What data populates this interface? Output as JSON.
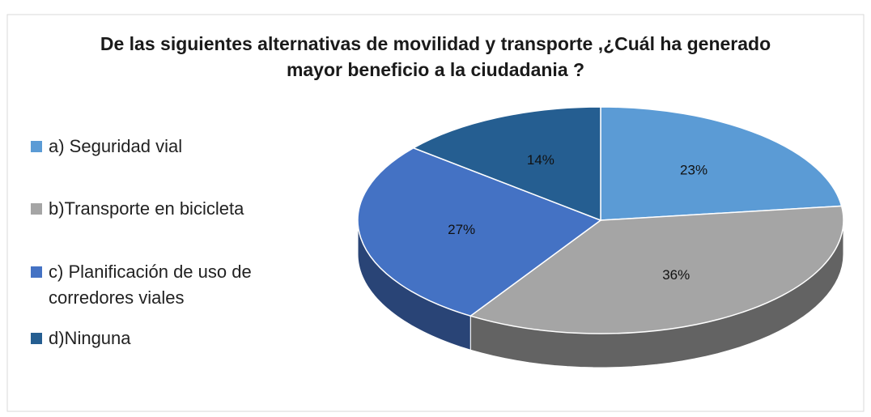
{
  "chart_data": {
    "type": "pie3d",
    "title": "De las siguientes alternativas de movilidad y transporte ,¿Cuál ha generado mayor beneficio a la ciudadania ?",
    "categories": [
      "a) Seguridad vial",
      "b)Transporte en bicicleta",
      "c) Planificación de uso de corredores viales",
      "d)Ninguna"
    ],
    "values": [
      23,
      36,
      27,
      14
    ],
    "value_labels": [
      "23%",
      "36%",
      "27%",
      "14%"
    ],
    "colors": [
      "#5b9bd5",
      "#a5a5a5",
      "#4472c4",
      "#255e91"
    ],
    "legend": "left"
  }
}
